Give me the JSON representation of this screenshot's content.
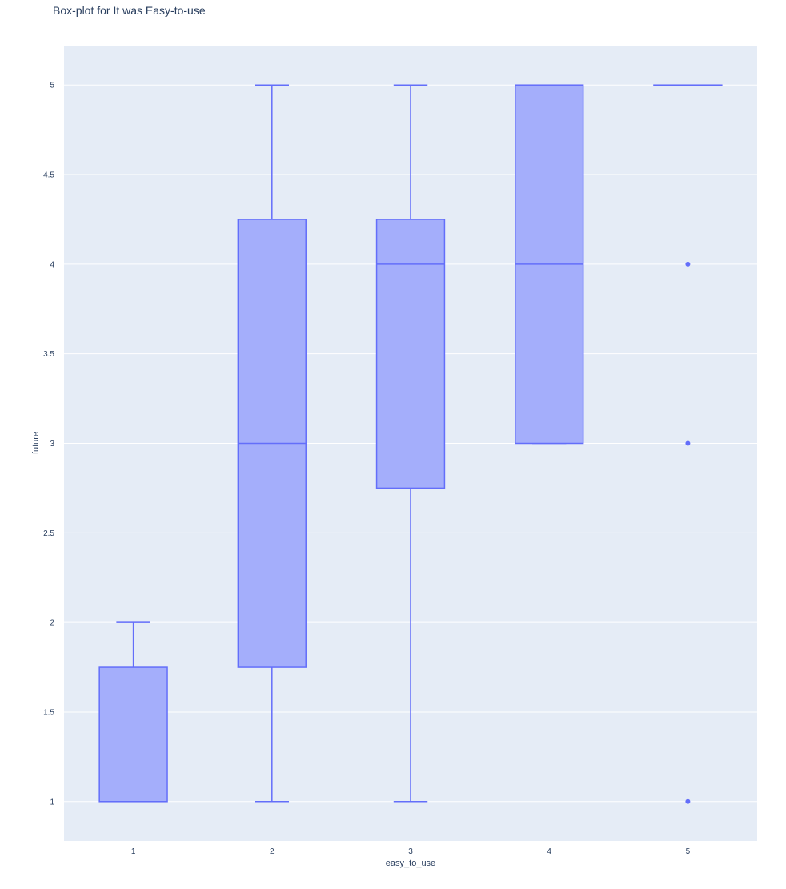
{
  "chart_data": {
    "type": "box",
    "title": "Box-plot for It was Easy-to-use",
    "xlabel": "easy_to_use",
    "ylabel": "future",
    "categories": [
      "1",
      "2",
      "3",
      "4",
      "5"
    ],
    "y_range": [
      0.78,
      5.22
    ],
    "y_ticks": [
      "1",
      "1.5",
      "2",
      "2.5",
      "3",
      "3.5",
      "4",
      "4.5",
      "5"
    ],
    "grid": true,
    "boxes": [
      {
        "category": "1",
        "lower_whisker": 1,
        "q1": 1,
        "median": 1,
        "q3": 1.75,
        "upper_whisker": 2,
        "outliers": []
      },
      {
        "category": "2",
        "lower_whisker": 1,
        "q1": 1.75,
        "median": 3,
        "q3": 4.25,
        "upper_whisker": 5,
        "outliers": []
      },
      {
        "category": "3",
        "lower_whisker": 1,
        "q1": 2.75,
        "median": 4,
        "q3": 4.25,
        "upper_whisker": 5,
        "outliers": []
      },
      {
        "category": "4",
        "lower_whisker": 3,
        "q1": 3,
        "median": 4,
        "q3": 5,
        "upper_whisker": 5,
        "outliers": []
      },
      {
        "category": "5",
        "lower_whisker": 5,
        "q1": 5,
        "median": 5,
        "q3": 5,
        "upper_whisker": 5,
        "outliers": [
          4,
          3,
          1
        ]
      }
    ],
    "colors": {
      "plot_bg": "#E5ECF6",
      "grid": "#ffffff",
      "box_fill": "#A4AEFB",
      "box_line": "#636EFA",
      "text": "#2a3f5f"
    }
  }
}
